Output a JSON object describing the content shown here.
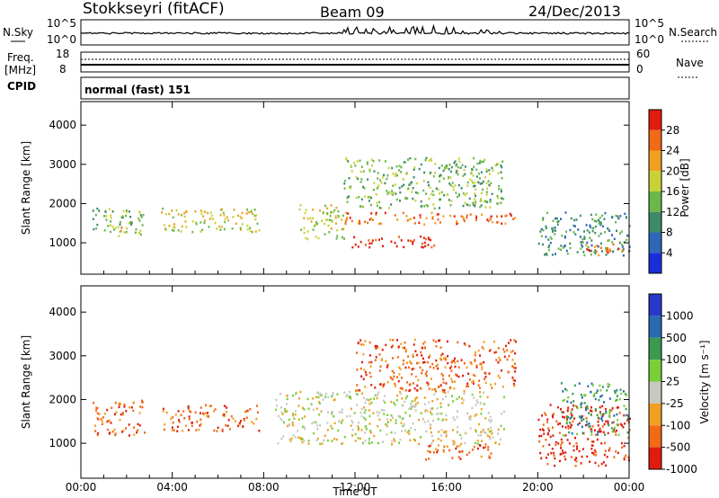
{
  "header": {
    "station": "Stokkseyri (fitACF)",
    "beam": "Beam 09",
    "date": "24/Dec/2013"
  },
  "status_panels": {
    "nsky_label": "N.Sky",
    "nsky_ticks": [
      "10^5",
      "10^0"
    ],
    "nsearch_label": "N.Search",
    "freq_label_1": "Freq.",
    "freq_label_2": "[MHz]",
    "freq_ticks": [
      "18",
      "8"
    ],
    "nave_ticks": [
      "60",
      "0"
    ],
    "nave_label": "Nave",
    "cpid_label": "CPID",
    "cpid_text": "normal (fast) 151"
  },
  "x_axis": {
    "ticks": [
      "00:00",
      "04:00",
      "08:00",
      "12:00",
      "16:00",
      "20:00",
      "00:00"
    ],
    "title": "Time UT"
  },
  "chart_data": [
    {
      "type": "heatmap",
      "panel": "power",
      "ylabel": "Slant Range [km]",
      "yticks": [
        "1000",
        "2000",
        "3000",
        "4000"
      ],
      "ylim": [
        200,
        4600
      ],
      "xlim": [
        0,
        24
      ],
      "colorbar_label": "Power [dB]",
      "colorbar_ticks": [
        "4",
        "8",
        "12",
        "16",
        "20",
        "24",
        "28"
      ],
      "colors": [
        "#1a2ed8",
        "#2e66b8",
        "#3d8a6a",
        "#6ab84a",
        "#c8d238",
        "#f0a020",
        "#f06a18",
        "#e01c10"
      ],
      "regions": [
        {
          "t0": 0.5,
          "t1": 2.8,
          "r0": 1200,
          "r1": 1900,
          "level": 3
        },
        {
          "t0": 1.5,
          "t1": 2.0,
          "r0": 1300,
          "r1": 1500,
          "level": 5
        },
        {
          "t0": 3.5,
          "t1": 7.8,
          "r0": 1300,
          "r1": 1900,
          "level": 4
        },
        {
          "t0": 9.5,
          "t1": 11.5,
          "r0": 1100,
          "r1": 2000,
          "level": 4
        },
        {
          "t0": 11.5,
          "t1": 19.0,
          "r0": 1500,
          "r1": 1800,
          "level": 6
        },
        {
          "t0": 11.8,
          "t1": 15.5,
          "r0": 900,
          "r1": 1200,
          "level": 7
        },
        {
          "t0": 11.5,
          "t1": 18.5,
          "r0": 1900,
          "r1": 3200,
          "level": 3
        },
        {
          "t0": 20.0,
          "t1": 24.0,
          "r0": 700,
          "r1": 1800,
          "level": 2
        },
        {
          "t0": 22.0,
          "t1": 24.0,
          "r0": 700,
          "r1": 1000,
          "level": 6
        }
      ]
    },
    {
      "type": "heatmap",
      "panel": "velocity",
      "ylabel": "Slant Range [km]",
      "yticks": [
        "1000",
        "2000",
        "3000",
        "4000"
      ],
      "ylim": [
        200,
        4600
      ],
      "xlim": [
        0,
        24
      ],
      "colorbar_label": "Velocity [m s⁻¹]",
      "colorbar_ticks": [
        "1000",
        "500",
        "100",
        "25",
        "-25",
        "-100",
        "-500",
        "-1000"
      ],
      "colors": [
        "#2838c8",
        "#2a6ab0",
        "#3a9a50",
        "#78d038",
        "#c8c8c0",
        "#f0a020",
        "#f06a18",
        "#e01c10"
      ],
      "regions": [
        {
          "t0": 0.5,
          "t1": 2.8,
          "r0": 1200,
          "r1": 2000,
          "level": 6
        },
        {
          "t0": 3.5,
          "t1": 7.8,
          "r0": 1300,
          "r1": 1900,
          "level": 6
        },
        {
          "t0": 8.5,
          "t1": 18.5,
          "r0": 1000,
          "r1": 2200,
          "level": 4
        },
        {
          "t0": 12.0,
          "t1": 19.0,
          "r0": 2200,
          "r1": 3400,
          "level": 6
        },
        {
          "t0": 15.0,
          "t1": 18.0,
          "r0": 600,
          "r1": 1000,
          "level": 6
        },
        {
          "t0": 20.0,
          "t1": 24.0,
          "r0": 500,
          "r1": 1900,
          "level": 7
        },
        {
          "t0": 21.0,
          "t1": 24.0,
          "r0": 1200,
          "r1": 2400,
          "level": 2
        }
      ]
    }
  ]
}
